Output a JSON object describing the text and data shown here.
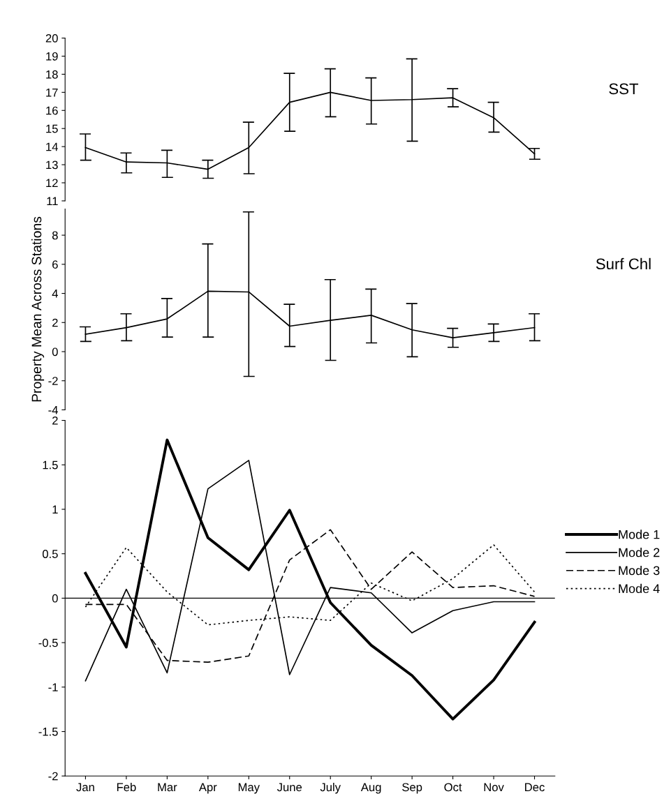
{
  "chart_data": [
    {
      "type": "line",
      "categories": [
        null,
        null,
        null,
        null,
        null,
        null,
        null,
        null,
        null,
        null,
        null,
        null
      ],
      "tick_labels": "y",
      "ylim": [
        11,
        20
      ],
      "yticks": [
        11,
        12,
        13,
        14,
        15,
        16,
        17,
        18,
        19,
        20
      ],
      "grid": false,
      "legend": false,
      "annotations": [
        "SST"
      ],
      "series": [
        {
          "color": "#000000",
          "line_style": "solid",
          "values": [
            13.95,
            13.15,
            13.1,
            12.75,
            13.95,
            16.45,
            17.0,
            16.55,
            16.6,
            16.7,
            15.6,
            13.6
          ],
          "errors": [
            [
              13.25,
              14.7
            ],
            [
              12.55,
              13.65
            ],
            [
              12.3,
              13.8
            ],
            [
              12.25,
              13.25
            ],
            [
              12.5,
              15.35
            ],
            [
              14.85,
              18.05
            ],
            [
              15.65,
              18.3
            ],
            [
              15.25,
              17.8
            ],
            [
              14.3,
              18.85
            ],
            [
              16.2,
              17.2
            ],
            [
              14.8,
              16.45
            ],
            [
              13.3,
              13.9
            ]
          ]
        }
      ]
    },
    {
      "type": "line",
      "categories": [
        null,
        null,
        null,
        null,
        null,
        null,
        null,
        null,
        null,
        null,
        null,
        null
      ],
      "tick_labels": "y",
      "ylim": [
        -4,
        9.8
      ],
      "yticks": [
        -4,
        -2,
        0,
        2,
        4,
        6,
        8
      ],
      "grid": false,
      "legend": false,
      "ylabel": "Property Mean Across Stations",
      "annotations": [
        "Surf Chl"
      ],
      "series": [
        {
          "color": "#000000",
          "line_style": "solid",
          "values": [
            1.2,
            1.65,
            2.25,
            4.15,
            4.1,
            1.75,
            2.15,
            2.5,
            1.5,
            0.95,
            1.3,
            1.65
          ],
          "errors": [
            [
              0.7,
              1.7
            ],
            [
              0.75,
              2.6
            ],
            [
              1.0,
              3.65
            ],
            [
              1.0,
              7.4
            ],
            [
              -1.7,
              9.6
            ],
            [
              0.35,
              3.25
            ],
            [
              -0.6,
              4.95
            ],
            [
              0.6,
              4.3
            ],
            [
              -0.35,
              3.3
            ],
            [
              0.3,
              1.6
            ],
            [
              0.7,
              1.9
            ],
            [
              0.75,
              2.6
            ]
          ]
        }
      ]
    },
    {
      "type": "line",
      "categories": [
        "Jan",
        "Feb",
        "Mar",
        "Apr",
        "May",
        "June",
        "July",
        "Aug",
        "Sep",
        "Oct",
        "Nov",
        "Dec"
      ],
      "ylim": [
        -2,
        2
      ],
      "yticks": [
        -2,
        -1.5,
        -1,
        -0.5,
        0,
        0.5,
        1,
        1.5,
        2
      ],
      "grid": false,
      "legend": "right",
      "marker": "none",
      "ref_lines": [
        {
          "axis": "y",
          "value": 0,
          "color": "#000000"
        }
      ],
      "series": [
        {
          "name": "Mode 1",
          "color": "#000000",
          "line_style": "solid",
          "values": [
            0.28,
            -0.55,
            1.78,
            0.68,
            0.32,
            0.99,
            -0.05,
            -0.53,
            -0.87,
            -1.36,
            -0.92,
            -0.27
          ]
        },
        {
          "name": "Mode 2",
          "color": "#000000",
          "line_style": "solid",
          "values": [
            -0.93,
            0.1,
            -0.84,
            1.23,
            1.55,
            -0.86,
            0.12,
            0.06,
            -0.39,
            -0.14,
            -0.04,
            -0.04
          ]
        },
        {
          "name": "Mode 3",
          "color": "#000000",
          "line_style": "dashed",
          "values": [
            -0.07,
            -0.07,
            -0.7,
            -0.72,
            -0.65,
            0.43,
            0.77,
            0.1,
            0.52,
            0.12,
            0.14,
            0.02
          ]
        },
        {
          "name": "Mode 4",
          "color": "#000000",
          "line_style": "dotted",
          "values": [
            -0.1,
            0.57,
            0.07,
            -0.3,
            -0.25,
            -0.21,
            -0.25,
            0.17,
            -0.03,
            0.22,
            0.6,
            0.07
          ]
        }
      ]
    }
  ]
}
